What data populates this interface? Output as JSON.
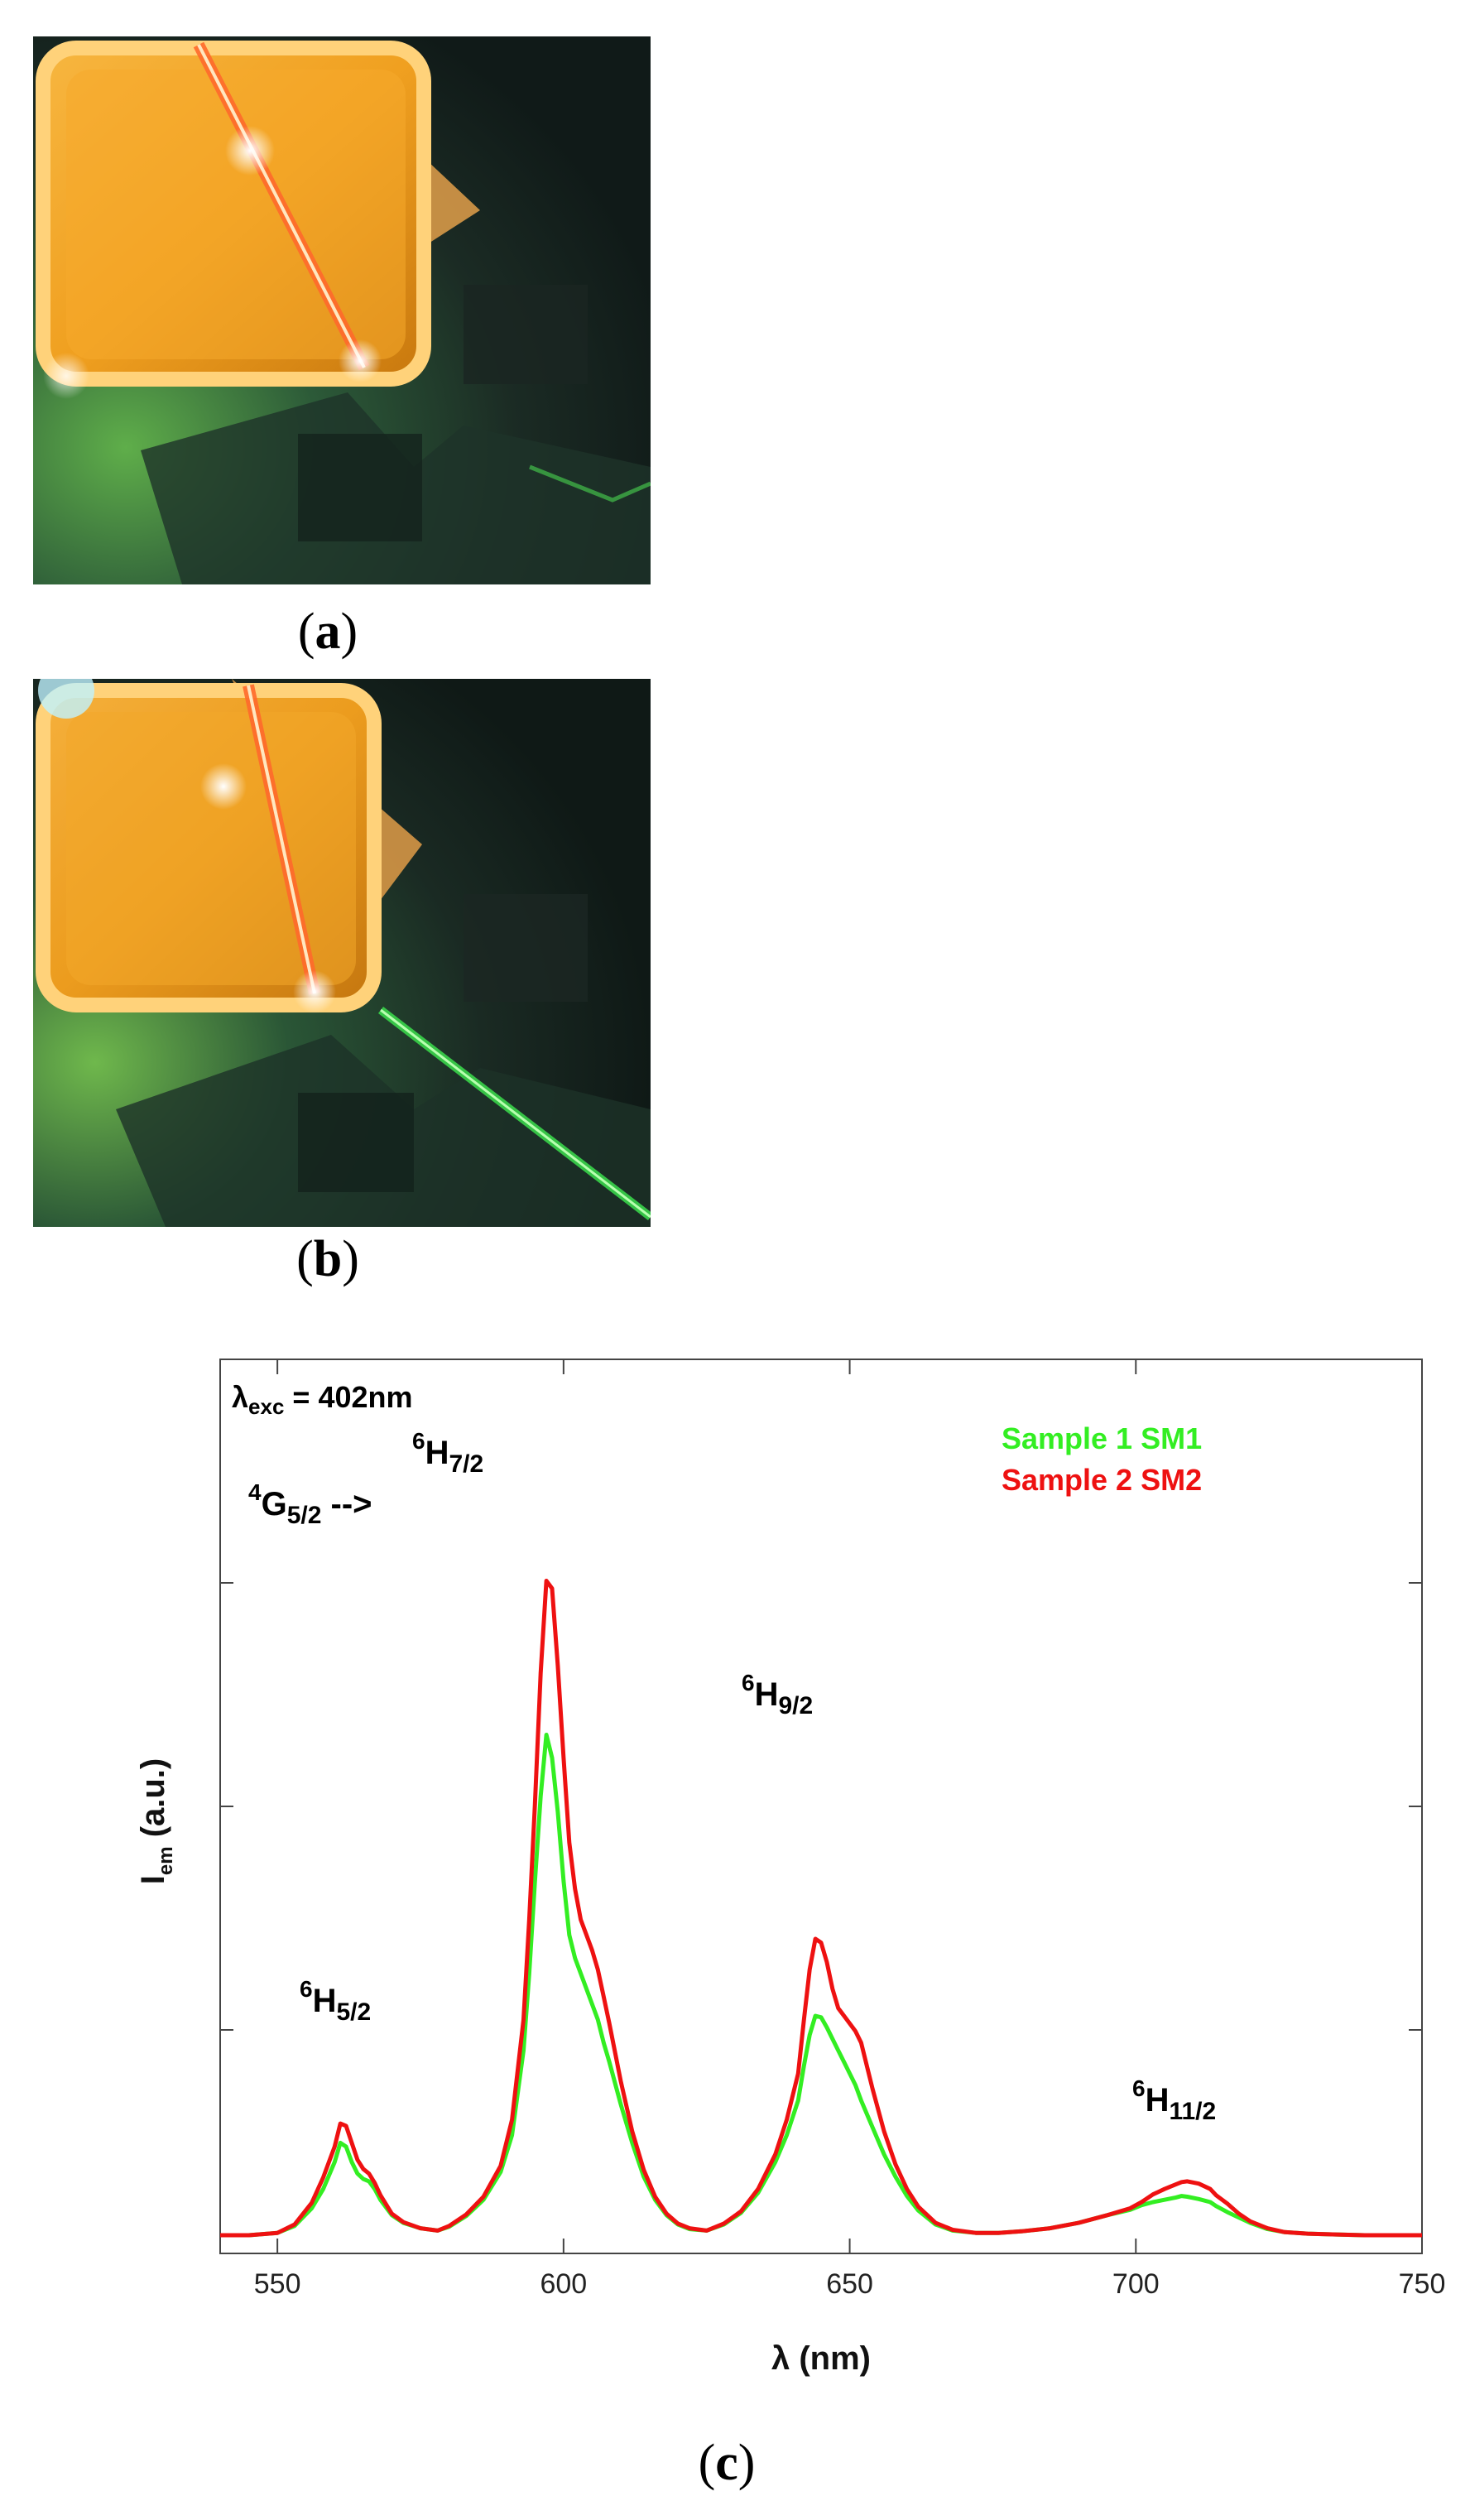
{
  "panels": {
    "a": {
      "label": "a"
    },
    "b": {
      "label": "b"
    },
    "c": {
      "label": "c"
    }
  },
  "colors": {
    "series1": "#33ee22",
    "series2": "#ee1111"
  },
  "chart_data": {
    "type": "line",
    "title": "",
    "xlabel": "λ (nm)",
    "ylabel": "I",
    "ylabel_sub": "em",
    "ylabel_unit": " (a.u.)",
    "xlim": [
      540,
      750
    ],
    "ylim": [
      0,
      100
    ],
    "xticks": [
      550,
      600,
      650,
      700,
      750
    ],
    "grid": false,
    "legend_position": "top-right",
    "annotations": {
      "excitation": {
        "main": "λ",
        "sub": "exc",
        "rest": " = 402nm"
      },
      "transition": {
        "sup": "4",
        "main": "G",
        "sub": "5/2",
        "rest": " -->"
      },
      "peaks": [
        {
          "sup": "6",
          "main": "H",
          "sub": "5/2",
          "x": 561
        },
        {
          "sup": "6",
          "main": "H",
          "sub": "7/2",
          "x": 597
        },
        {
          "sup": "6",
          "main": "H",
          "sub": "9/2",
          "x": 644
        },
        {
          "sup": "6",
          "main": "H",
          "sub": "11/2",
          "x": 708
        }
      ]
    },
    "x": [
      540,
      545,
      550,
      553,
      556,
      558,
      560,
      561,
      562,
      563,
      564,
      565,
      566,
      567,
      568,
      570,
      572,
      575,
      578,
      580,
      583,
      586,
      589,
      591,
      593,
      594,
      595,
      596,
      597,
      598,
      599,
      600,
      601,
      602,
      603,
      604,
      605,
      606,
      607,
      608,
      610,
      612,
      614,
      616,
      618,
      620,
      622,
      625,
      628,
      631,
      634,
      637,
      639,
      641,
      642,
      643,
      644,
      645,
      646,
      647,
      648,
      649,
      650,
      651,
      652,
      654,
      656,
      658,
      660,
      662,
      665,
      668,
      672,
      676,
      680,
      685,
      690,
      695,
      699,
      701,
      703,
      705,
      707,
      708,
      709,
      711,
      713,
      714,
      716,
      718,
      720,
      723,
      726,
      730,
      735,
      740,
      745,
      750
    ],
    "series": [
      {
        "name": "Sample 1 SM1",
        "values": [
          0,
          0,
          0.3,
          1.2,
          3.5,
          6,
          9.5,
          12,
          11.5,
          9.5,
          8,
          7.3,
          7,
          6,
          4.6,
          2.6,
          1.6,
          0.9,
          0.6,
          1.1,
          2.5,
          4.6,
          8.2,
          13,
          24,
          34,
          46,
          57,
          65,
          62,
          55,
          46,
          39,
          36,
          34,
          32,
          30,
          28,
          25,
          22.5,
          17,
          12,
          7.6,
          4.6,
          2.6,
          1.4,
          0.8,
          0.6,
          1.4,
          2.9,
          5.5,
          9.5,
          13,
          17.5,
          22,
          26,
          28.5,
          28.3,
          27,
          25.5,
          24,
          22.5,
          21,
          19.5,
          17.5,
          14,
          10.5,
          7.6,
          5.1,
          3.2,
          1.4,
          0.6,
          0.3,
          0.3,
          0.5,
          0.9,
          1.6,
          2.6,
          3.3,
          3.9,
          4.3,
          4.6,
          4.9,
          5.1,
          5,
          4.7,
          4.3,
          3.8,
          3,
          2.3,
          1.6,
          0.8,
          0.4,
          0.2,
          0.1,
          0,
          0,
          0
        ]
      },
      {
        "name": "Sample 2 SM2",
        "values": [
          0,
          0,
          0.3,
          1.4,
          4.2,
          7.5,
          11.5,
          14.5,
          14.2,
          12,
          9.8,
          8.6,
          8,
          6.8,
          5.2,
          2.8,
          1.7,
          0.9,
          0.6,
          1.2,
          2.7,
          5,
          9,
          15,
          28,
          41,
          56,
          73,
          85,
          84,
          74,
          62,
          51,
          45,
          41,
          39,
          37,
          34.5,
          31,
          27.5,
          20,
          13.5,
          8.5,
          5,
          2.8,
          1.5,
          0.9,
          0.6,
          1.5,
          3.1,
          6,
          10.5,
          15,
          21,
          28,
          34.5,
          38.5,
          38,
          35.5,
          32,
          29.5,
          28.5,
          27.5,
          26.5,
          25,
          19,
          13.5,
          9.2,
          6,
          3.7,
          1.6,
          0.7,
          0.3,
          0.3,
          0.5,
          0.9,
          1.6,
          2.6,
          3.5,
          4.3,
          5.3,
          6,
          6.6,
          6.9,
          7,
          6.7,
          6,
          5.2,
          4.1,
          2.8,
          1.8,
          0.9,
          0.4,
          0.2,
          0.1,
          0,
          0,
          0
        ]
      }
    ]
  }
}
